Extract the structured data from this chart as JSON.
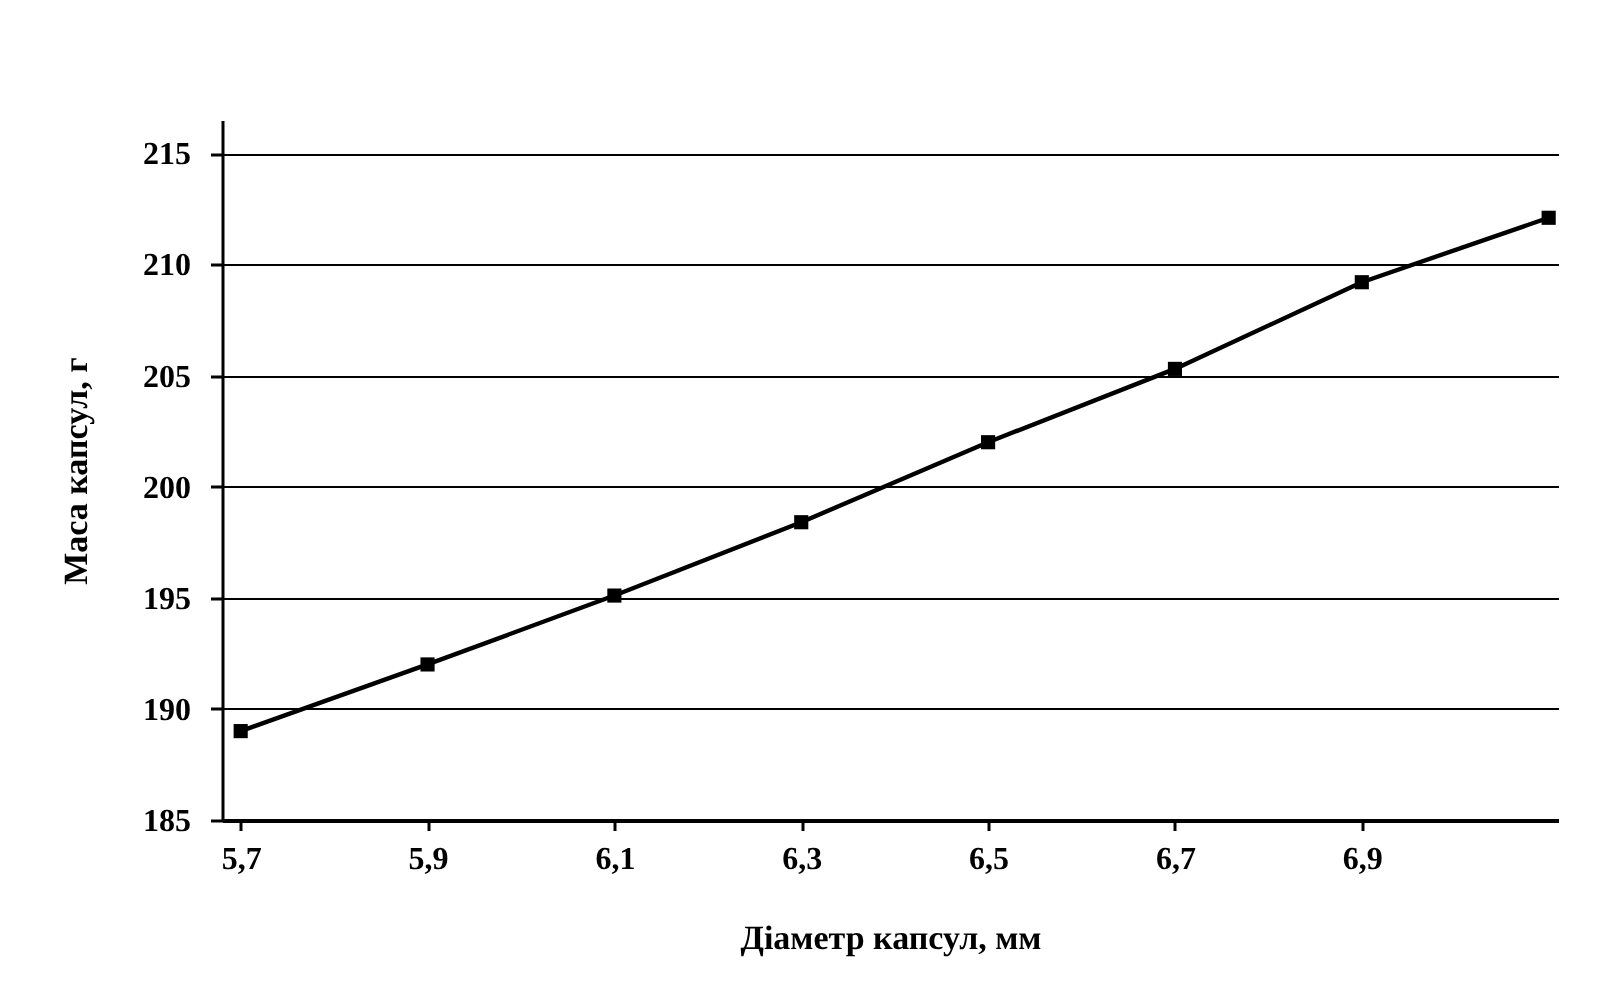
{
  "chart_data": {
    "type": "line",
    "xlabel": "Діаметр капсул, мм",
    "ylabel": "Маса капсул, г",
    "x": [
      5.7,
      5.9,
      6.1,
      6.3,
      6.5,
      6.7,
      6.9,
      7.1
    ],
    "series": [
      {
        "color": "#000000",
        "values": [
          189.0,
          192.0,
          195.1,
          198.4,
          202.0,
          205.3,
          209.2,
          212.1
        ]
      }
    ],
    "xlim": [
      5.68,
      7.11
    ],
    "xticks": [
      {
        "value": 5.7,
        "label": "5,7"
      },
      {
        "value": 5.9,
        "label": "5,9"
      },
      {
        "value": 6.1,
        "label": "6,1"
      },
      {
        "value": 6.3,
        "label": "6,3"
      },
      {
        "value": 6.5,
        "label": "6,5"
      },
      {
        "value": 6.7,
        "label": "6,7"
      },
      {
        "value": 6.9,
        "label": "6,9"
      }
    ],
    "ylim": [
      185,
      216.5
    ],
    "yticks": [
      185,
      190,
      195,
      200,
      205,
      210,
      215
    ],
    "grid": "y",
    "marker": "square",
    "line_style": "solid"
  }
}
